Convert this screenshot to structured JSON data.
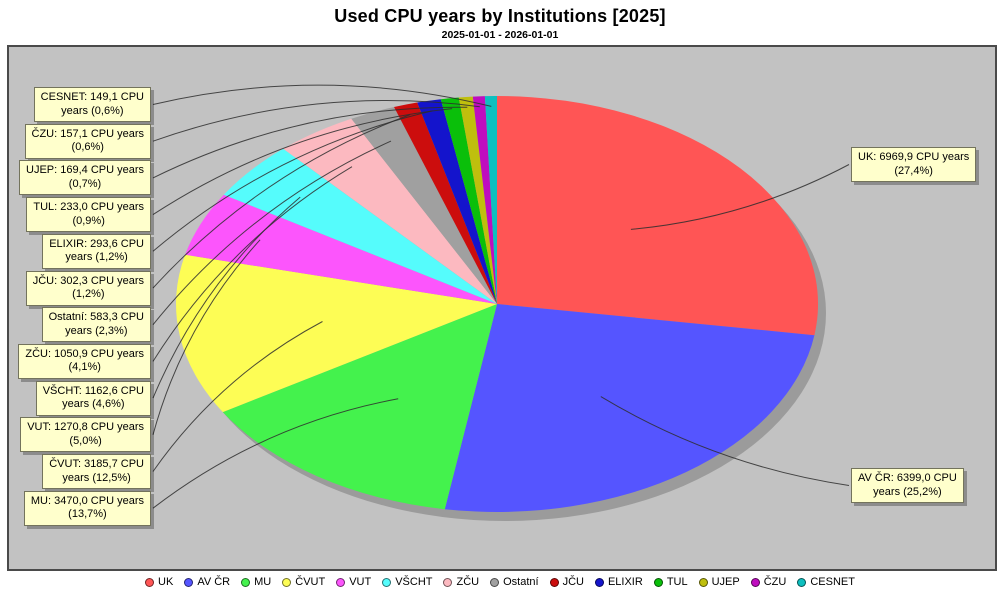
{
  "chart_data": {
    "type": "pie",
    "title": "Used CPU years by Institutions [2025]",
    "subtitle": "2025-01-01 - 2026-01-01",
    "unit": "CPU years",
    "legend_position": "bottom",
    "plot_background": "#c2c2c2",
    "callout_background": "#ffffcc",
    "slices": [
      {
        "name": "UK",
        "value": 6969.9,
        "percent": 27.4,
        "color": "#ff5555",
        "label_lines": [
          "UK: 6969,9 CPU years",
          "(27,4%)"
        ],
        "callout_side": "right"
      },
      {
        "name": "AV ČR",
        "value": 6399.0,
        "percent": 25.2,
        "color": "#5555ff",
        "label_lines": [
          "AV ČR: 6399,0 CPU",
          "years (25,2%)"
        ],
        "callout_side": "right"
      },
      {
        "name": "MU",
        "value": 3470.0,
        "percent": 13.7,
        "color": "#44f24d",
        "label_lines": [
          "MU: 3470,0 CPU years",
          "(13,7%)"
        ],
        "callout_side": "left"
      },
      {
        "name": "ČVUT",
        "value": 3185.7,
        "percent": 12.5,
        "color": "#fdfd55",
        "label_lines": [
          "ČVUT: 3185,7 CPU",
          "years (12,5%)"
        ],
        "callout_side": "left"
      },
      {
        "name": "VUT",
        "value": 1270.8,
        "percent": 5.0,
        "color": "#fc55fc",
        "label_lines": [
          "VUT: 1270,8 CPU years",
          "(5,0%)"
        ],
        "callout_side": "left"
      },
      {
        "name": "VŠCHT",
        "value": 1162.6,
        "percent": 4.6,
        "color": "#55fcfc",
        "label_lines": [
          "VŠCHT: 1162,6 CPU",
          "years (4,6%)"
        ],
        "callout_side": "left"
      },
      {
        "name": "ZČU",
        "value": 1050.9,
        "percent": 4.1,
        "color": "#fcb9c0",
        "label_lines": [
          "ZČU: 1050,9 CPU years",
          "(4,1%)"
        ],
        "callout_side": "left"
      },
      {
        "name": "Ostatní",
        "value": 583.3,
        "percent": 2.3,
        "color": "#a0a0a0",
        "label_lines": [
          "Ostatní: 583,3 CPU",
          "years (2,3%)"
        ],
        "callout_side": "left"
      },
      {
        "name": "JČU",
        "value": 302.3,
        "percent": 1.2,
        "color": "#cc0d0d",
        "label_lines": [
          "JČU: 302,3 CPU years",
          "(1,2%)"
        ],
        "callout_side": "left"
      },
      {
        "name": "ELIXIR",
        "value": 293.6,
        "percent": 1.2,
        "color": "#1414cc",
        "label_lines": [
          "ELIXIR: 293,6 CPU",
          "years (1,2%)"
        ],
        "callout_side": "left"
      },
      {
        "name": "TUL",
        "value": 233.0,
        "percent": 0.9,
        "color": "#0abf0a",
        "label_lines": [
          "TUL: 233,0 CPU years",
          "(0,9%)"
        ],
        "callout_side": "left"
      },
      {
        "name": "UJEP",
        "value": 169.4,
        "percent": 0.7,
        "color": "#bfbf0d",
        "label_lines": [
          "UJEP: 169,4 CPU years",
          "(0,7%)"
        ],
        "callout_side": "left"
      },
      {
        "name": "ČZU",
        "value": 157.1,
        "percent": 0.6,
        "color": "#bf0dbf",
        "label_lines": [
          "ČZU: 157,1 CPU years",
          "(0,6%)"
        ],
        "callout_side": "left"
      },
      {
        "name": "CESNET",
        "value": 149.1,
        "percent": 0.6,
        "color": "#0dbfbf",
        "label_lines": [
          "CESNET: 149,1 CPU",
          "years (0,6%)"
        ],
        "callout_side": "left"
      }
    ],
    "legend": [
      "UK",
      "AV ČR",
      "MU",
      "ČVUT",
      "VUT",
      "VŠCHT",
      "ZČU",
      "Ostatní",
      "JČU",
      "ELIXIR",
      "TUL",
      "UJEP",
      "ČZU",
      "CESNET"
    ],
    "callout_left_order_top_to_bottom": [
      "CESNET",
      "ČZU",
      "UJEP",
      "TUL",
      "ELIXIR",
      "JČU",
      "Ostatní",
      "ZČU",
      "VŠCHT",
      "VUT",
      "ČVUT",
      "MU"
    ],
    "callout_right_order_top_to_bottom": [
      "UK",
      "AV ČR"
    ]
  }
}
